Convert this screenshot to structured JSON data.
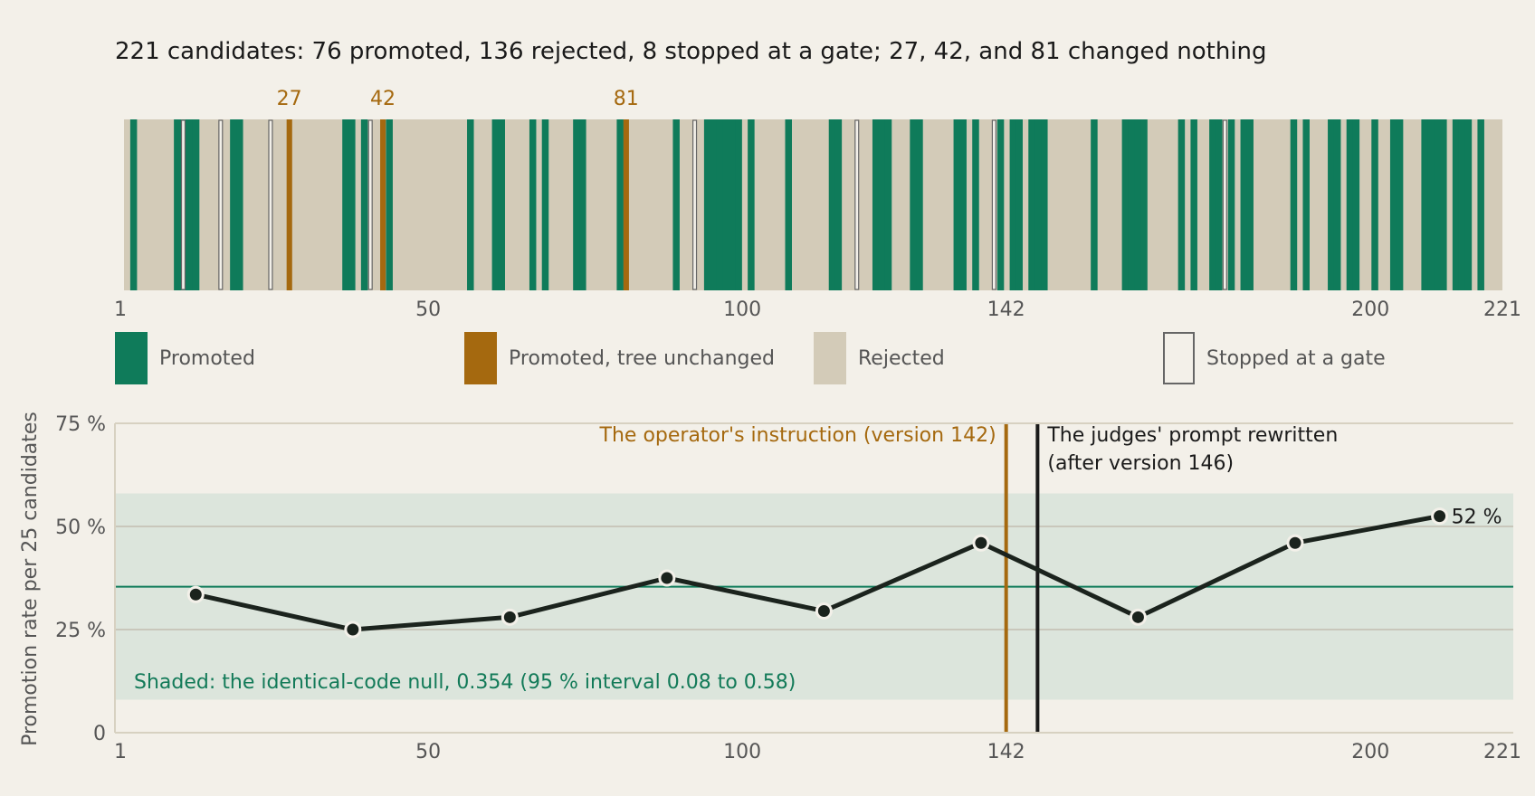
{
  "title": "221 candidates: 76 promoted, 136 rejected, 8 stopped at a gate; 27, 42, and 81 changed nothing",
  "colors": {
    "background": "#f3f0e9",
    "promoted": "#0f7b5a",
    "unchanged": "#a5690f",
    "rejected": "#d3cbb8",
    "gate_stroke": "#666666",
    "null_band": "#dce5dc",
    "line": "#1b231d"
  },
  "legend": [
    {
      "key": "promoted",
      "label": "Promoted"
    },
    {
      "key": "unchanged",
      "label": "Promoted, tree unchanged"
    },
    {
      "key": "rejected",
      "label": "Rejected"
    },
    {
      "key": "gate",
      "label": "Stopped at a gate"
    }
  ],
  "chart_data": [
    {
      "type": "strip",
      "x_range": [
        1,
        221
      ],
      "x_ticks": [
        1,
        50,
        100,
        142,
        200,
        221
      ],
      "promoted": [
        2,
        9,
        10,
        11,
        12,
        18,
        19,
        36,
        37,
        39,
        43,
        56,
        60,
        61,
        66,
        68,
        73,
        74,
        80,
        89,
        94,
        95,
        96,
        97,
        98,
        99,
        101,
        107,
        114,
        115,
        121,
        122,
        123,
        127,
        128,
        134,
        135,
        137,
        141,
        143,
        144,
        146,
        147,
        148,
        156,
        161,
        162,
        163,
        164,
        170,
        172,
        175,
        176,
        178,
        180,
        181,
        188,
        190,
        194,
        195,
        197,
        198,
        201,
        204,
        205,
        209,
        210,
        211,
        212,
        214,
        215,
        216,
        218
      ],
      "unchanged": [
        27,
        42,
        81
      ],
      "gate": [
        10,
        16,
        24,
        40,
        92,
        118,
        140,
        177
      ],
      "highlight_labels": [
        "27",
        "42",
        "81"
      ]
    },
    {
      "type": "line",
      "ylabel": "Promotion rate per 25 candidates",
      "x_range": [
        1,
        221
      ],
      "x_ticks": [
        1,
        50,
        100,
        142,
        200,
        221
      ],
      "y_range": [
        0,
        75
      ],
      "y_ticks": [
        {
          "value": 0,
          "label": "0"
        },
        {
          "value": 25,
          "label": "25 %"
        },
        {
          "value": 50,
          "label": "50 %"
        },
        {
          "value": 75,
          "label": "75 %"
        }
      ],
      "x": [
        13,
        38,
        63,
        88,
        113,
        138,
        163,
        188,
        211
      ],
      "y": [
        33.5,
        25,
        28,
        37.5,
        29.5,
        46,
        28,
        46,
        52.5
      ],
      "end_label": "52 %",
      "null_rate": 35.4,
      "null_interval": [
        8,
        58
      ],
      "null_note": "Shaded: the identical-code null, 0.354 (95 % interval 0.08 to 0.58)",
      "markers": [
        {
          "x": 142,
          "label": "The operator's instruction (version 142)",
          "color": "#a5690f"
        },
        {
          "x": 147,
          "label_lines": [
            "The judges' prompt rewritten",
            "(after version 146)"
          ],
          "color": "#1a1a1a"
        }
      ]
    }
  ]
}
